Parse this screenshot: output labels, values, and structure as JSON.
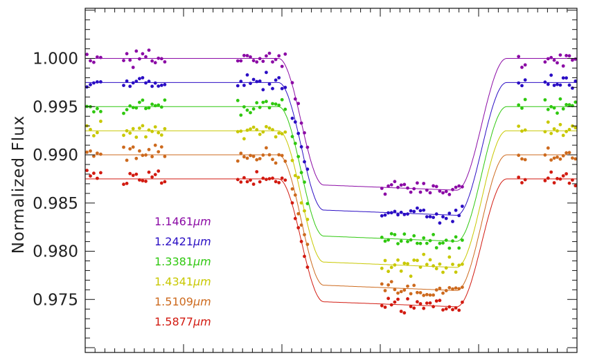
{
  "chart_data": {
    "type": "scatter",
    "title": "",
    "xlabel": "",
    "ylabel": "Normalized Flux",
    "ylim": [
      0.9695,
      1.0052
    ],
    "xlim": [
      0,
      1
    ],
    "grid": false,
    "legend_position": "lower-left",
    "yticks": [
      {
        "value": 1.0,
        "label": "1.000"
      },
      {
        "value": 0.995,
        "label": "0.995"
      },
      {
        "value": 0.99,
        "label": "0.990"
      },
      {
        "value": 0.985,
        "label": "0.985"
      },
      {
        "value": 0.98,
        "label": "0.980"
      },
      {
        "value": 0.975,
        "label": "0.975"
      }
    ],
    "transit_model": {
      "ingress_start": 0.393,
      "ingress_end": 0.485,
      "egress_start": 0.755,
      "egress_end": 0.857,
      "bottom_tilt": 0.04
    },
    "observation_windows": [
      [
        0.0,
        0.035
      ],
      [
        0.075,
        0.165
      ],
      [
        0.307,
        0.41
      ],
      [
        0.418,
        0.455
      ],
      [
        0.6,
        0.77
      ],
      [
        0.878,
        0.898
      ],
      [
        0.932,
        1.0
      ]
    ],
    "scatter_amplitude": 0.0011,
    "series": [
      {
        "name": "1.1461µm",
        "label_num": "1.1461",
        "label_unit": "µm",
        "color": "#8b0aa5",
        "baseline": 1.0,
        "depth": 0.0134
      },
      {
        "name": "1.2421µm",
        "label_num": "1.2421",
        "label_unit": "µm",
        "color": "#2a0dc4",
        "baseline": 0.9975,
        "depth": 0.0135
      },
      {
        "name": "1.3381µm",
        "label_num": "1.3381",
        "label_unit": "µm",
        "color": "#2fc80f",
        "baseline": 0.995,
        "depth": 0.0137
      },
      {
        "name": "1.4341µm",
        "label_num": "1.4341",
        "label_unit": "µm",
        "color": "#c8c800",
        "baseline": 0.9925,
        "depth": 0.0139
      },
      {
        "name": "1.5109µm",
        "label_num": "1.5109",
        "label_unit": "µm",
        "color": "#cd6a1e",
        "baseline": 0.99,
        "depth": 0.0138
      },
      {
        "name": "1.5877µm",
        "label_num": "1.5877",
        "label_unit": "µm",
        "color": "#d21a10",
        "baseline": 0.9875,
        "depth": 0.013
      }
    ]
  }
}
